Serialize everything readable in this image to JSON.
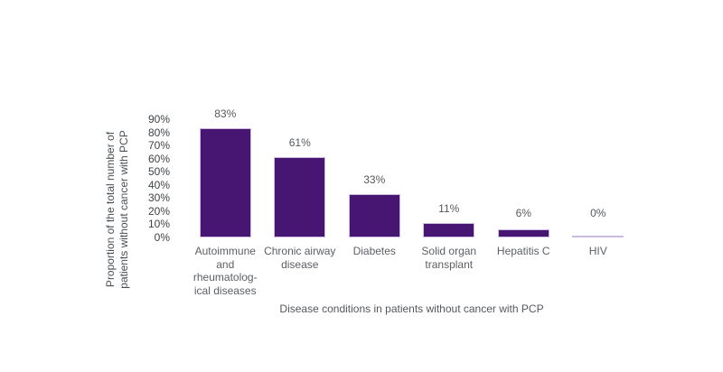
{
  "chart_data": {
    "type": "bar",
    "categories": [
      "Autoimmune and rheumatological diseases",
      "Chronic airway disease",
      "Diabetes",
      "Solid organ transplant",
      "Hepatitis C",
      "HIV"
    ],
    "category_label_lines": [
      [
        "Autoimmune",
        "and rheumatolog-",
        "ical diseases"
      ],
      [
        "Chronic airway",
        "disease"
      ],
      [
        "Diabetes"
      ],
      [
        "Solid organ",
        "transplant"
      ],
      [
        "Hepatitis C"
      ],
      [
        "HIV"
      ]
    ],
    "values": [
      83,
      61,
      33,
      11,
      6,
      0
    ],
    "value_labels": [
      "83%",
      "61%",
      "33%",
      "11%",
      "6%",
      "0%"
    ],
    "title": "",
    "xlabel": "Disease conditions in patients without cancer with PCP",
    "ylabel": "Proportion of the total number of patients without cancer with PCP",
    "ylabel_lines": [
      "Proportion of the total number of",
      "patients without cancer with PCP"
    ],
    "yticks": [
      "90%",
      "80%",
      "70%",
      "60%",
      "50%",
      "40%",
      "30%",
      "20%",
      "10%",
      "0%"
    ],
    "ytick_values": [
      90,
      80,
      70,
      60,
      50,
      40,
      30,
      20,
      10,
      0
    ],
    "ylim": [
      0,
      90
    ],
    "grid": false,
    "legend": "none",
    "axis_lines": false,
    "bar_color": "#471572",
    "bar_border_color": "#cdbce0",
    "background_color": "#ffffff"
  }
}
